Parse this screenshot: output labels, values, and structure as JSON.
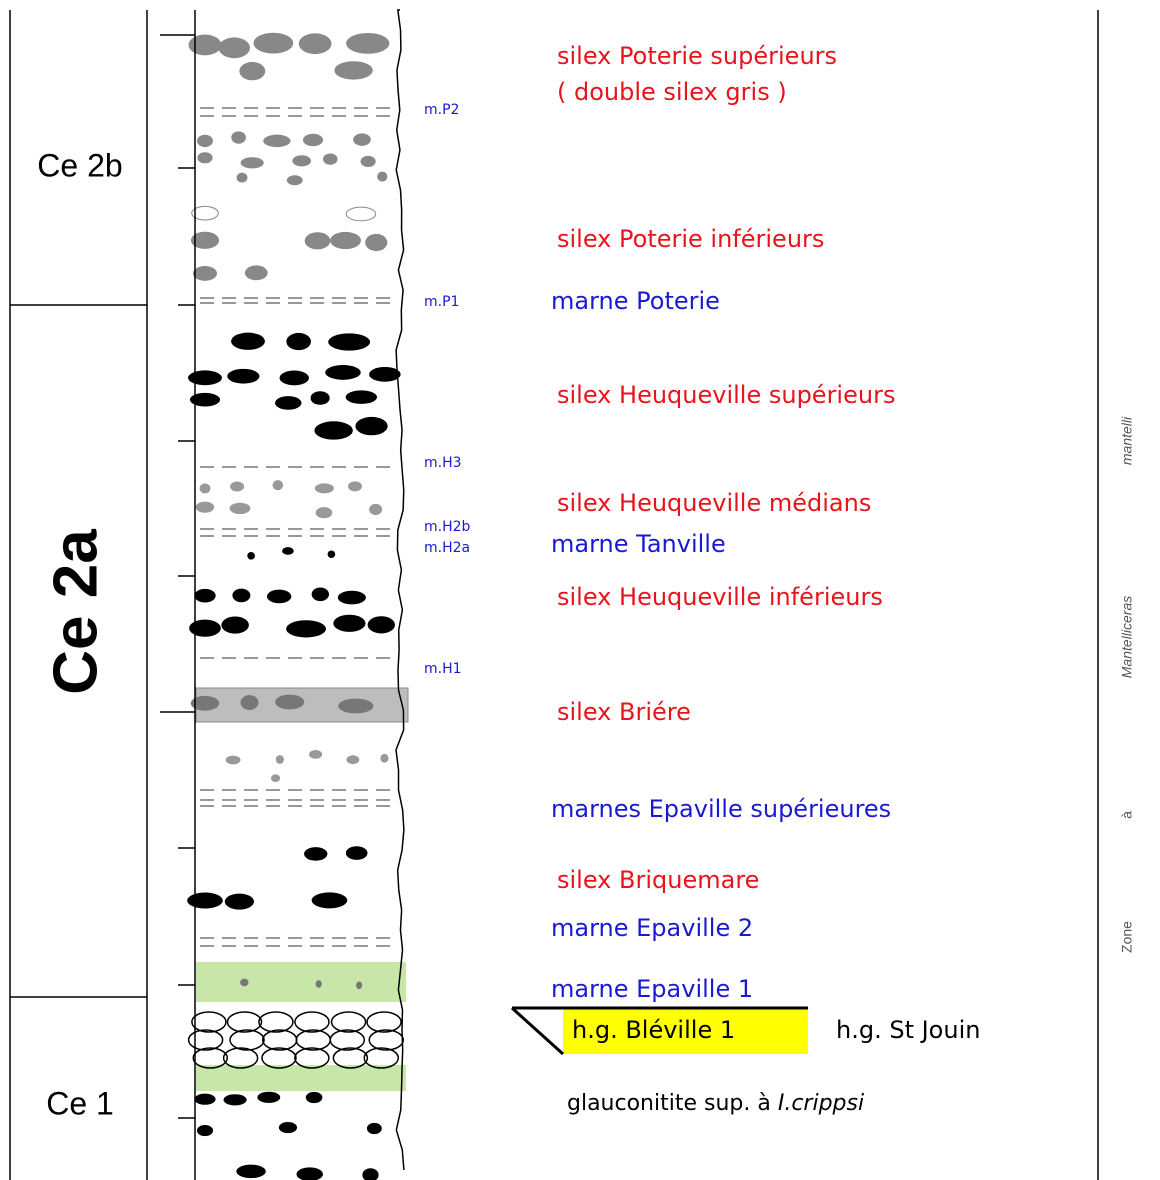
{
  "units": [
    "Ce 2b",
    "Ce 2a",
    "Ce 1"
  ],
  "markers": [
    "m.P2",
    "m.P1",
    "m.H3",
    "m.H2b",
    "m.H2a",
    "m.H1"
  ],
  "layers": [
    "silex Poterie supérieurs",
    "( double silex gris )",
    "silex Poterie inférieurs",
    "marne Poterie",
    "silex Heuqueville supérieurs",
    "silex Heuqueville médians",
    "marne Tanville",
    "silex Heuqueville inférieurs",
    "silex Briére",
    "marnes Epaville supérieures",
    "silex Briquemare",
    "marne Epaville 2",
    "marne Epaville 1"
  ],
  "horizons": {
    "main": "h.g. Bléville 1",
    "other": "h.g. St Jouin"
  },
  "glauconitite": {
    "text": "glauconitite sup. à",
    "species": "I.crippsi"
  },
  "zone": {
    "word": "Zone",
    "prep": "à",
    "genus": "Mantelliceras",
    "species": "mantelli"
  }
}
